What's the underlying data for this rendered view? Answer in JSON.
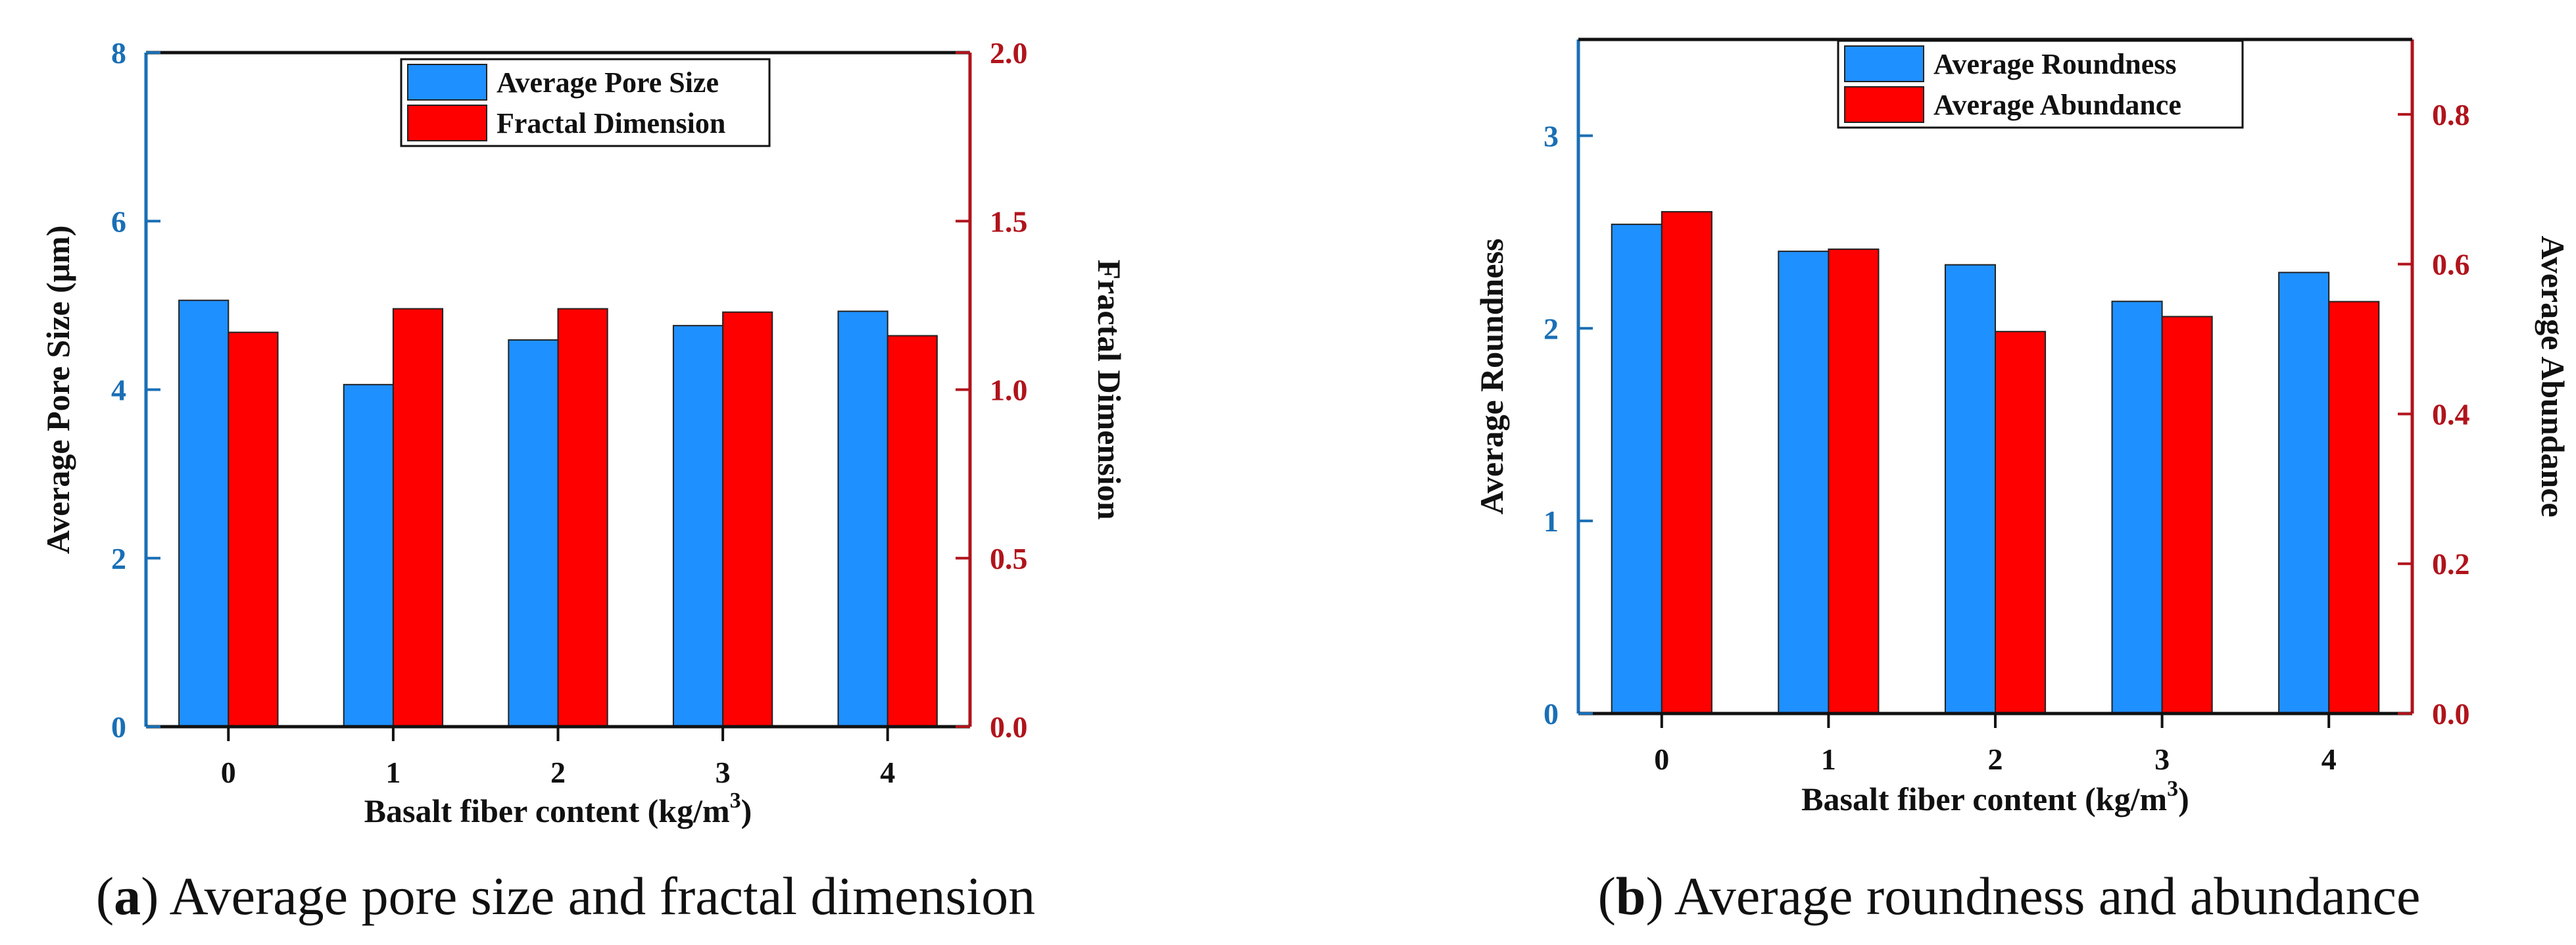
{
  "chart_data": [
    {
      "type": "bar",
      "categories": [
        "0",
        "1",
        "2",
        "3",
        "4"
      ],
      "xlabel": "Basalt fiber content (kg/m",
      "xlabel_sup": "3",
      "xlabel_end": ")",
      "ylabel": "Average Pore Size (μm)",
      "y2label": "Fractal Dimension",
      "ylim": [
        0,
        8
      ],
      "y2lim": [
        0,
        2.0
      ],
      "yticks": [
        "0",
        "2",
        "4",
        "6",
        "8"
      ],
      "y2ticks": [
        "0.0",
        "0.5",
        "1.0",
        "1.5",
        "2.0"
      ],
      "legend_position": "top-center",
      "series": [
        {
          "name": "Average Pore Size",
          "axis": "left",
          "color": "#1e90ff",
          "values": [
            5.06,
            4.06,
            4.59,
            4.76,
            4.93
          ]
        },
        {
          "name": "Fractal Dimension",
          "axis": "right",
          "color": "#ff0000",
          "values": [
            1.17,
            1.24,
            1.24,
            1.23,
            1.16
          ]
        }
      ],
      "caption_letter": "a",
      "caption_text": "Average pore size and fractal dimension"
    },
    {
      "type": "bar",
      "categories": [
        "0",
        "1",
        "2",
        "3",
        "4"
      ],
      "xlabel": "Basalt fiber content (kg/m",
      "xlabel_sup": "3",
      "xlabel_end": ")",
      "ylabel": "Average Roundness",
      "y2label": "Average Abundance",
      "ylim": [
        0,
        3.5
      ],
      "y2lim": [
        0,
        0.9
      ],
      "yticks": [
        "0",
        "1",
        "2",
        "3"
      ],
      "y2ticks": [
        "0.0",
        "0.2",
        "0.4",
        "0.6",
        "0.8"
      ],
      "legend_position": "top-center",
      "series": [
        {
          "name": "Average Roundness",
          "axis": "left",
          "color": "#1e90ff",
          "values": [
            2.54,
            2.4,
            2.33,
            2.14,
            2.29
          ]
        },
        {
          "name": "Average Abundance",
          "axis": "right",
          "color": "#ff0000",
          "values": [
            0.67,
            0.62,
            0.51,
            0.53,
            0.55
          ]
        }
      ],
      "caption_letter": "b",
      "caption_text": "Average roundness and abundance"
    }
  ],
  "colors": {
    "left_axis": "#1a6fb5",
    "right_axis": "#b0141c",
    "frame": "#111111"
  }
}
